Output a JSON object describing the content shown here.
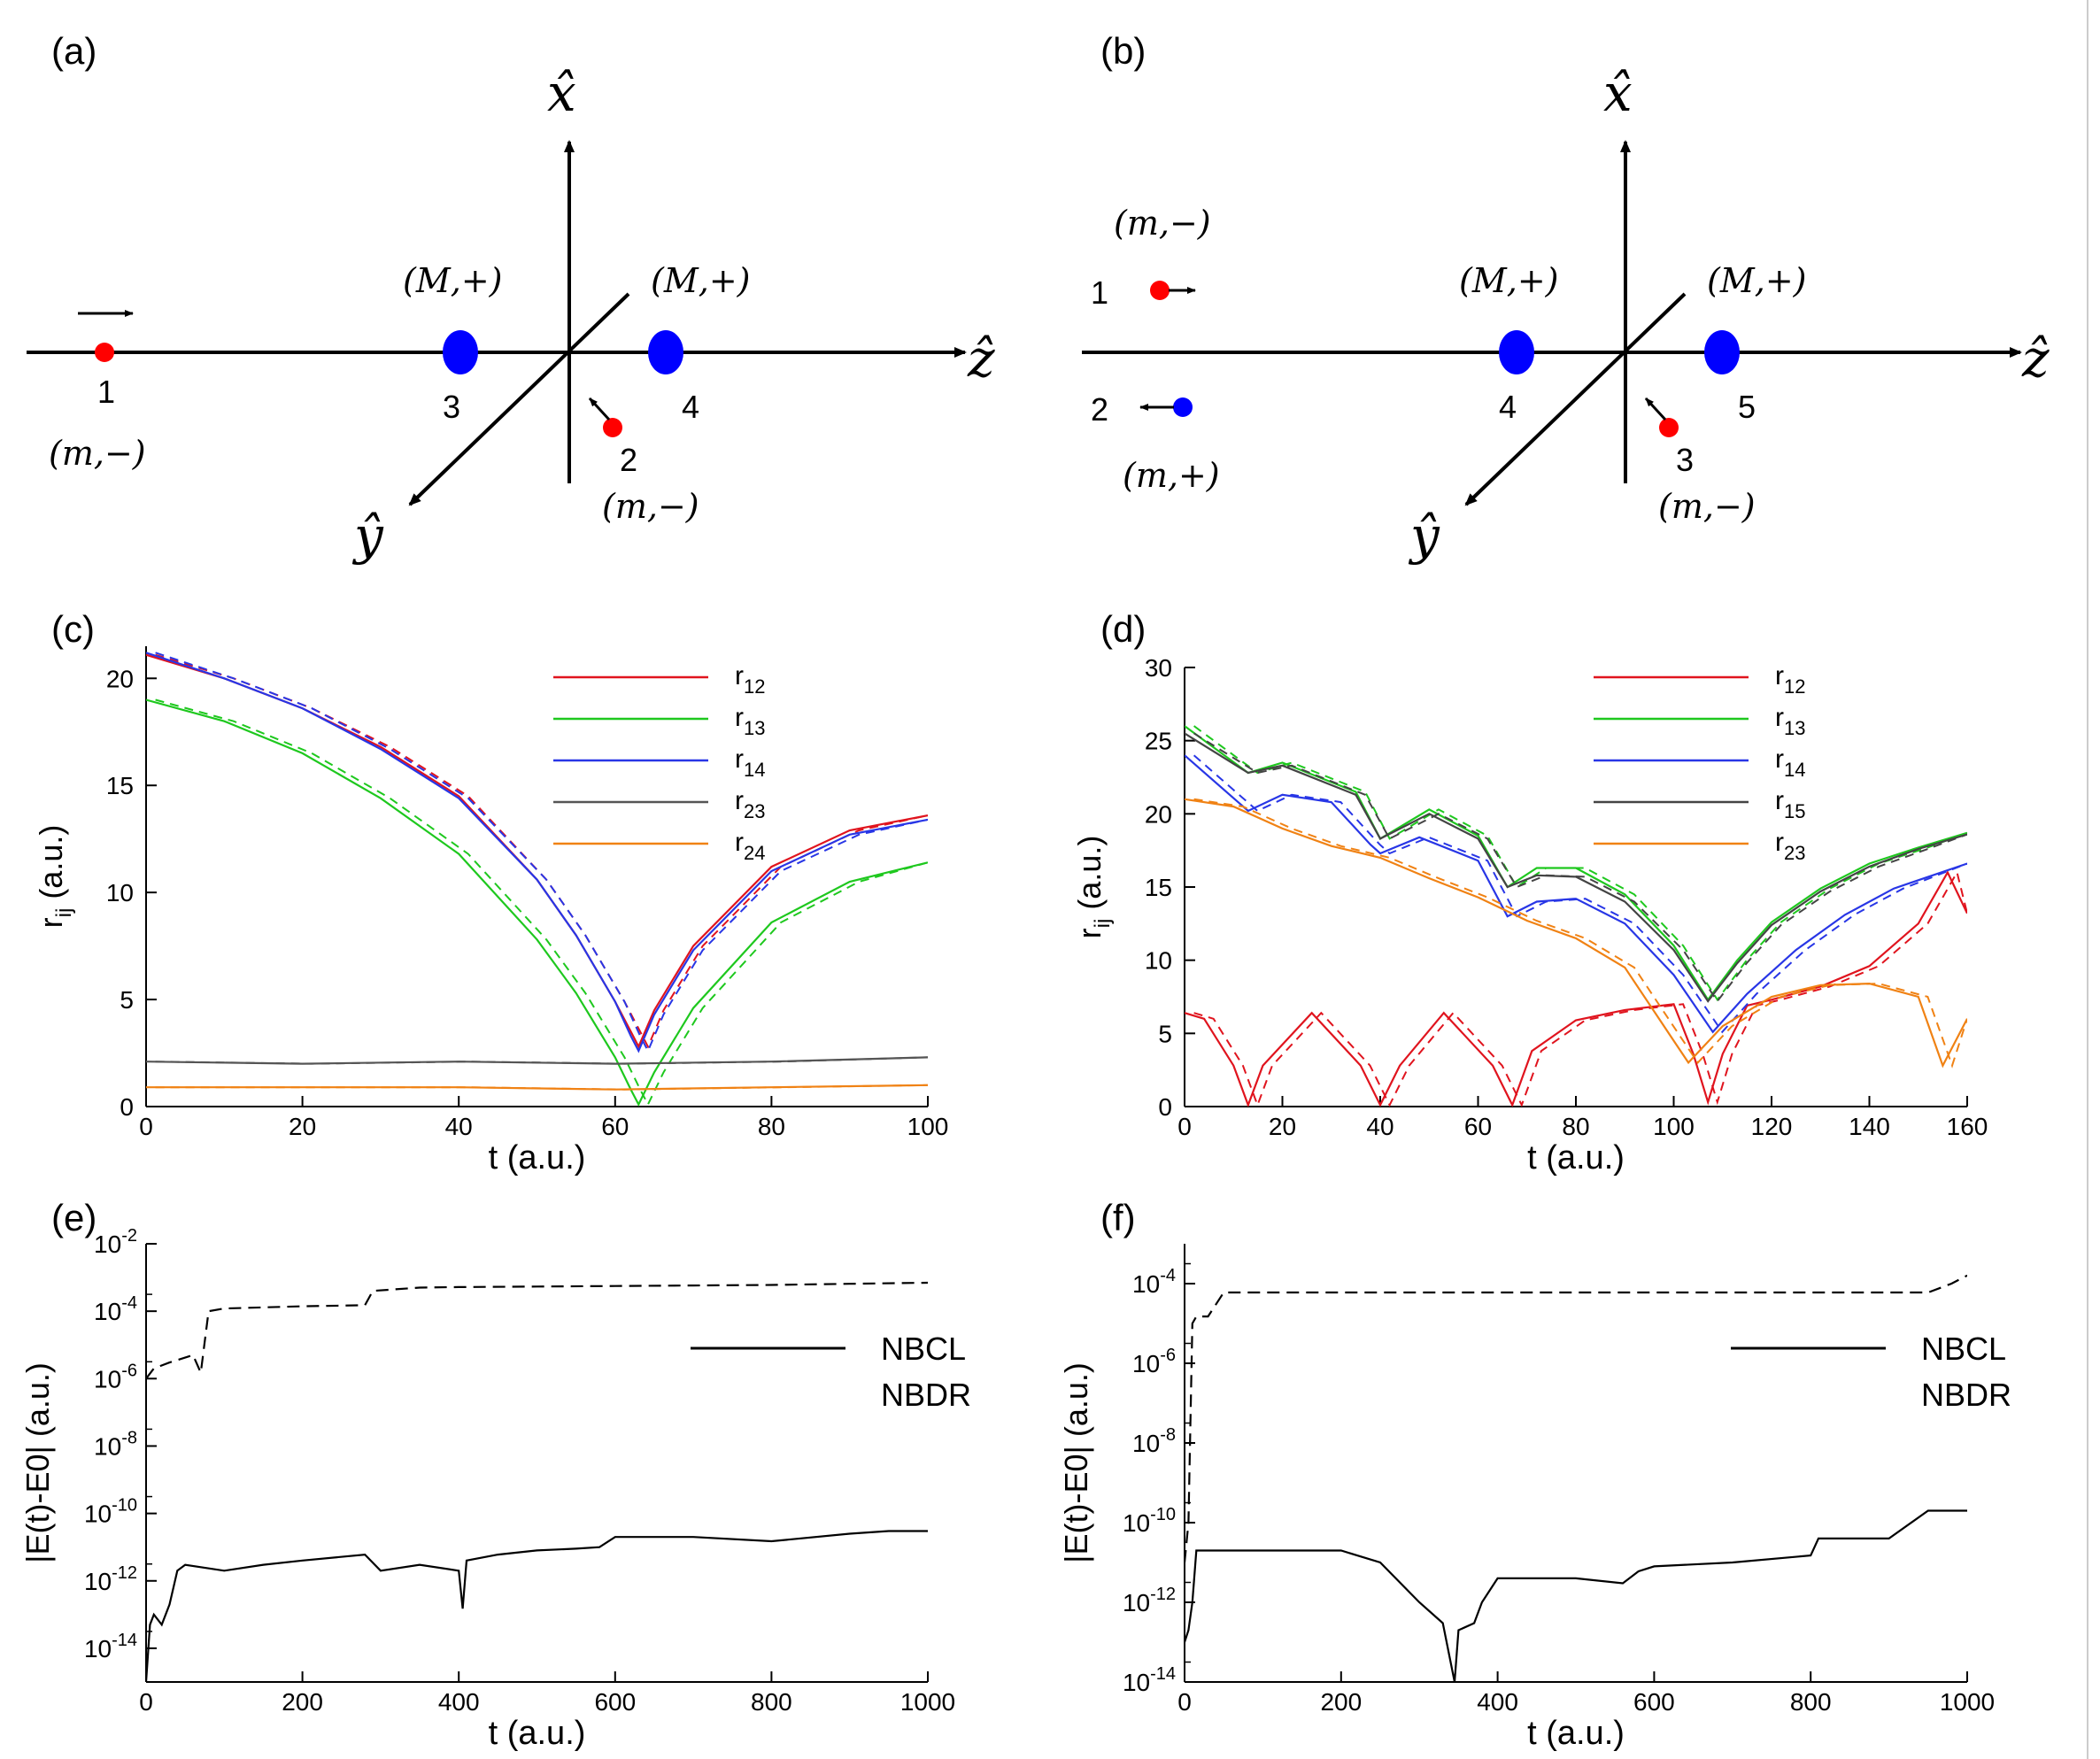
{
  "diagram_a": {
    "panel_label": "(a)",
    "axis_x": "x̂",
    "axis_y": "ŷ",
    "axis_z": "ẑ",
    "particles": [
      {
        "id": "1",
        "label": "(m,−)",
        "color": "#ff0000"
      },
      {
        "id": "2",
        "label": "(m,−)",
        "color": "#ff0000"
      },
      {
        "id": "3",
        "label": "(M,+)",
        "color": "#0000ff"
      },
      {
        "id": "4",
        "label": "(M,+)",
        "color": "#0000ff"
      }
    ]
  },
  "diagram_b": {
    "panel_label": "(b)",
    "axis_x": "x̂",
    "axis_y": "ŷ",
    "axis_z": "ẑ",
    "particles": [
      {
        "id": "1",
        "label": "(m,−)",
        "color": "#ff0000"
      },
      {
        "id": "2",
        "label": "(m,+)",
        "color": "#0000ff"
      },
      {
        "id": "3",
        "label": "(m,−)",
        "color": "#ff0000"
      },
      {
        "id": "4",
        "label": "(M,+)",
        "color": "#0000ff"
      },
      {
        "id": "5",
        "label": "(M,+)",
        "color": "#0000ff"
      }
    ]
  },
  "chart_data": [
    {
      "panel_label": "(c)",
      "type": "line",
      "xlabel": "t (a.u.)",
      "ylabel_main": "r",
      "ylabel_sub": "ij",
      "ylabel_unit": "(a.u.)",
      "xlim": [
        0,
        100
      ],
      "ylim": [
        0,
        21.5
      ],
      "xticks": [
        0,
        20,
        40,
        60,
        80,
        100
      ],
      "yticks": [
        0,
        5,
        10,
        15,
        20
      ],
      "legend_position": "top-right",
      "series": [
        {
          "name": "r",
          "sub": "12",
          "color": "#e0141e",
          "x": [
            0,
            10,
            20,
            30,
            40,
            50,
            55,
            60,
            62,
            63,
            65,
            70,
            80,
            90,
            100
          ],
          "y": [
            21.1,
            20.0,
            18.6,
            16.8,
            14.5,
            10.6,
            8.0,
            4.9,
            3.5,
            2.8,
            4.5,
            7.5,
            11.2,
            12.9,
            13.6
          ]
        },
        {
          "name": "r",
          "sub": "13",
          "color": "#1ec81e",
          "x": [
            0,
            10,
            20,
            30,
            40,
            50,
            55,
            60,
            62,
            63,
            65,
            70,
            80,
            90,
            100
          ],
          "y": [
            19.0,
            18.0,
            16.5,
            14.4,
            11.8,
            7.8,
            5.3,
            2.3,
            0.8,
            0.1,
            1.6,
            4.6,
            8.6,
            10.5,
            11.4
          ]
        },
        {
          "name": "r",
          "sub": "14",
          "color": "#2836e6",
          "x": [
            0,
            10,
            20,
            30,
            40,
            50,
            55,
            60,
            62,
            63,
            65,
            70,
            80,
            90,
            100
          ],
          "y": [
            21.2,
            20.0,
            18.6,
            16.7,
            14.4,
            10.6,
            8.0,
            4.9,
            3.3,
            2.6,
            4.3,
            7.3,
            11.0,
            12.7,
            13.4
          ]
        },
        {
          "name": "r",
          "sub": "23",
          "color": "#555555",
          "x": [
            0,
            20,
            40,
            60,
            80,
            100
          ],
          "y": [
            2.1,
            2.0,
            2.1,
            2.0,
            2.1,
            2.3
          ]
        },
        {
          "name": "r",
          "sub": "24",
          "color": "#f08214",
          "x": [
            0,
            20,
            40,
            60,
            80,
            100
          ],
          "y": [
            0.9,
            0.9,
            0.9,
            0.8,
            0.9,
            1.0
          ]
        }
      ]
    },
    {
      "panel_label": "(d)",
      "type": "line",
      "xlabel": "t (a.u.)",
      "ylabel_main": "r",
      "ylabel_sub": "ij",
      "ylabel_unit": "(a.u.)",
      "xlim": [
        0,
        160
      ],
      "ylim": [
        0,
        30
      ],
      "xticks": [
        0,
        20,
        40,
        60,
        80,
        100,
        120,
        140,
        160
      ],
      "yticks": [
        0,
        5,
        10,
        15,
        20,
        25,
        30
      ],
      "legend_position": "top-right",
      "series": [
        {
          "name": "r",
          "sub": "12",
          "color": "#e0141e",
          "x": [
            0,
            4,
            10,
            13,
            16,
            26,
            36,
            40,
            44,
            53,
            63,
            67,
            71,
            80,
            90,
            100,
            104,
            107,
            110,
            115,
            120,
            130,
            140,
            150,
            156,
            160
          ],
          "y": [
            6.4,
            6.0,
            2.8,
            0.1,
            2.8,
            6.4,
            2.8,
            0.1,
            2.8,
            6.4,
            2.8,
            0.1,
            3.8,
            5.9,
            6.6,
            7.0,
            3.6,
            0.3,
            3.6,
            6.9,
            7.3,
            8.2,
            9.6,
            12.5,
            16.0,
            13.2
          ]
        },
        {
          "name": "r",
          "sub": "13",
          "color": "#1ec81e",
          "x": [
            0,
            13,
            20,
            35,
            40,
            50,
            60,
            66,
            72,
            80,
            90,
            100,
            107,
            113,
            120,
            130,
            140,
            150,
            160
          ],
          "y": [
            26.0,
            22.8,
            23.5,
            21.5,
            18.3,
            20.3,
            18.5,
            15.0,
            16.3,
            16.3,
            14.5,
            11.0,
            7.3,
            10.0,
            12.6,
            14.9,
            16.6,
            17.7,
            18.7
          ]
        },
        {
          "name": "r",
          "sub": "14",
          "color": "#2836e6",
          "x": [
            0,
            13,
            20,
            30,
            38,
            40,
            48,
            60,
            66,
            72,
            80,
            90,
            100,
            108,
            115,
            125,
            135,
            145,
            160
          ],
          "y": [
            24.0,
            20.2,
            21.3,
            20.8,
            17.9,
            17.3,
            18.4,
            16.8,
            13.0,
            14.0,
            14.2,
            12.5,
            9.0,
            5.1,
            7.7,
            10.7,
            13.1,
            14.9,
            16.6
          ]
        },
        {
          "name": "r",
          "sub": "15",
          "color": "#444444",
          "x": [
            0,
            13,
            20,
            35,
            40,
            50,
            60,
            66,
            72,
            80,
            90,
            100,
            107,
            113,
            120,
            130,
            140,
            150,
            160
          ],
          "y": [
            25.5,
            22.8,
            23.3,
            21.3,
            18.3,
            20.0,
            18.3,
            15.0,
            15.8,
            15.7,
            14.0,
            10.7,
            7.2,
            9.8,
            12.4,
            14.7,
            16.4,
            17.6,
            18.6
          ]
        },
        {
          "name": "r",
          "sub": "23",
          "color": "#f08214",
          "x": [
            0,
            10,
            20,
            30,
            40,
            50,
            60,
            70,
            80,
            90,
            100,
            103,
            110,
            120,
            130,
            140,
            150,
            155,
            160
          ],
          "y": [
            21.0,
            20.5,
            19.0,
            17.8,
            17.0,
            15.6,
            14.3,
            12.7,
            11.5,
            9.5,
            4.5,
            3.0,
            5.5,
            7.5,
            8.3,
            8.4,
            7.5,
            2.8,
            6.0
          ]
        }
      ]
    },
    {
      "panel_label": "(e)",
      "type": "line",
      "scale_y": "log",
      "xlabel": "t (a.u.)",
      "ylabel": "|E(t)-E0| (a.u.)",
      "xlim": [
        0,
        1000
      ],
      "ylim": [
        1e-15,
        0.01
      ],
      "xticks": [
        0,
        200,
        400,
        600,
        800,
        1000
      ],
      "ytick_exponents": [
        -14,
        -12,
        -10,
        -8,
        -6,
        -4,
        -2
      ],
      "legend_position": "right",
      "series": [
        {
          "name": "NBCL",
          "color": "#000000",
          "style": "solid",
          "x": [
            0,
            5,
            10,
            20,
            30,
            40,
            50,
            100,
            150,
            200,
            280,
            300,
            350,
            400,
            405,
            410,
            450,
            500,
            550,
            580,
            600,
            700,
            800,
            900,
            950,
            1000
          ],
          "y": [
            1e-15,
            5e-14,
            1e-13,
            5e-14,
            2e-13,
            2e-12,
            3e-12,
            2e-12,
            3e-12,
            4e-12,
            6e-12,
            2e-12,
            3e-12,
            2e-12,
            1.5e-13,
            4e-12,
            6e-12,
            8e-12,
            9e-12,
            1e-11,
            2e-11,
            2e-11,
            1.5e-11,
            2.5e-11,
            3e-11,
            3e-11
          ]
        },
        {
          "name": "NBDR",
          "color": "#000000",
          "style": "dashed",
          "x": [
            0,
            10,
            30,
            60,
            70,
            80,
            100,
            200,
            280,
            290,
            350,
            400,
            500,
            600,
            700,
            800,
            900,
            1000
          ],
          "y": [
            1e-06,
            2e-06,
            3e-06,
            5e-06,
            1.5e-06,
            0.0001,
            0.00012,
            0.00014,
            0.00015,
            0.0004,
            0.0005,
            0.00052,
            0.00054,
            0.00056,
            0.00058,
            0.0006,
            0.00065,
            0.0007
          ]
        }
      ]
    },
    {
      "panel_label": "(f)",
      "type": "line",
      "scale_y": "log",
      "xlabel": "t (a.u.)",
      "ylabel": "|E(t)-E0| (a.u.)",
      "xlim": [
        0,
        1000
      ],
      "ylim": [
        1e-14,
        0.001
      ],
      "xticks": [
        0,
        200,
        400,
        600,
        800,
        1000
      ],
      "ytick_exponents": [
        -14,
        -12,
        -10,
        -8,
        -6,
        -4
      ],
      "legend_position": "right",
      "series": [
        {
          "name": "NBCL",
          "color": "#000000",
          "style": "solid",
          "x": [
            0,
            5,
            10,
            15,
            20,
            100,
            200,
            250,
            300,
            330,
            345,
            350,
            370,
            380,
            400,
            500,
            560,
            580,
            600,
            700,
            800,
            810,
            900,
            950,
            1000
          ],
          "y": [
            1e-13,
            2e-13,
            1e-12,
            2e-11,
            2e-11,
            2e-11,
            2e-11,
            1e-11,
            1e-12,
            3e-13,
            1e-14,
            2e-13,
            3e-13,
            1e-12,
            4e-12,
            4e-12,
            3e-12,
            6e-12,
            8e-12,
            1e-11,
            1.5e-11,
            4e-11,
            4e-11,
            2e-10,
            2e-10
          ]
        },
        {
          "name": "NBDR",
          "color": "#000000",
          "style": "dashed",
          "x": [
            0,
            5,
            10,
            15,
            30,
            50,
            60,
            100,
            200,
            400,
            600,
            800,
            900,
            950,
            980,
            1000
          ],
          "y": [
            1e-11,
            1e-10,
            1e-05,
            1.5e-05,
            1.5e-05,
            6e-05,
            6e-05,
            6e-05,
            6e-05,
            6e-05,
            6e-05,
            6e-05,
            6e-05,
            6e-05,
            0.0001,
            0.00016
          ]
        }
      ]
    }
  ]
}
